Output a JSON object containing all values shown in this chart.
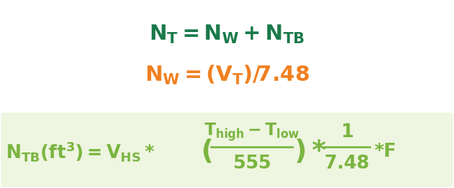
{
  "bg_color": "#ffffff",
  "box_bg_color": "#eef5e0",
  "teal_color": "#1a7a4a",
  "orange_color": "#f08020",
  "green_color": "#7ab540",
  "fig_width": 6.52,
  "fig_height": 2.7,
  "line1": "N_{T} = N_{W} + N_{TB}",
  "line2": "N_{W} = (V_{T})/7.48",
  "line3_left": "N_{TB}(ft^{3}) = V_{HS}*",
  "line3_frac_num": "T_{high}-T_{low}",
  "line3_frac_den": "555",
  "line3_right": "*F",
  "fraction_label": "1\n7.48"
}
